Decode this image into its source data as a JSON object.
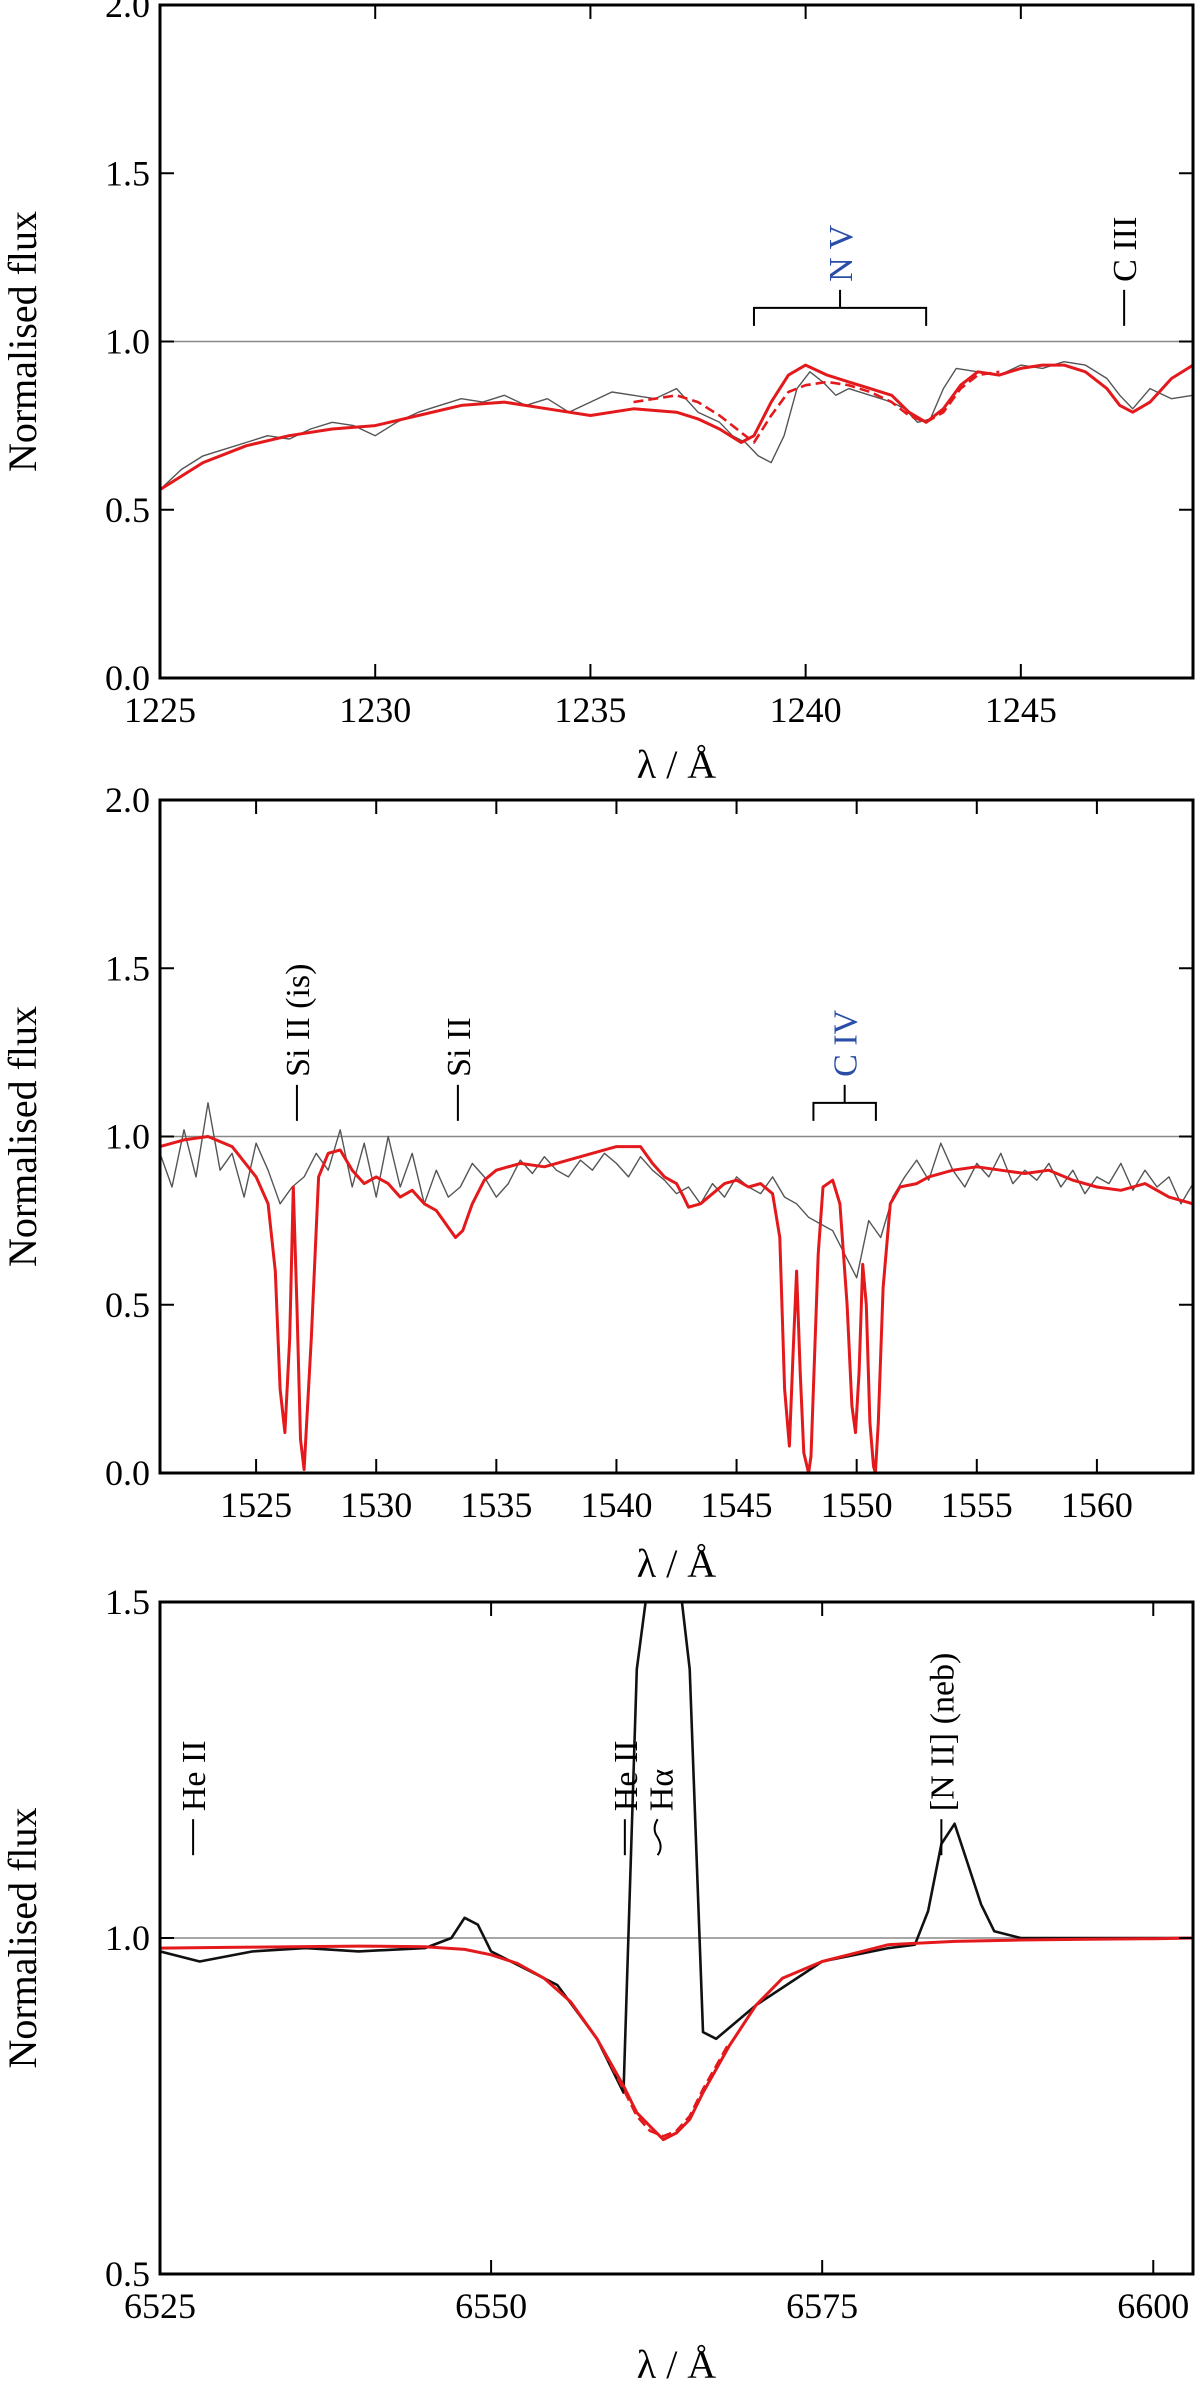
{
  "colors": {
    "observed": "#555555",
    "observed_halpha": "#111111",
    "model": "#e3191c",
    "line_id_blue": "#2a4ea8",
    "line_id_black": "#000000",
    "continuum": "#888888"
  },
  "chart_data": [
    {
      "type": "line",
      "xlabel": "λ / Å",
      "ylabel": "Normalised flux",
      "xlim": [
        1225,
        1249
      ],
      "ylim": [
        0,
        2
      ],
      "xticks": [
        1225,
        1230,
        1235,
        1240,
        1245
      ],
      "yticks": [
        0.0,
        0.5,
        1.0,
        1.5,
        2.0
      ],
      "ytick_labels": [
        "0.0",
        "0.5",
        "1.0",
        "1.5",
        "2.0"
      ],
      "continuum": 1.0,
      "annotations": [
        {
          "label": "N V",
          "color": "blue",
          "type": "doublet",
          "x": [
            1238.8,
            1242.8
          ],
          "y": 1.1
        },
        {
          "label": "C III",
          "color": "black",
          "type": "single",
          "x": 1247.4,
          "y": 1.1
        }
      ],
      "series": [
        {
          "style": "observed",
          "x": [
            1225,
            1225.5,
            1226,
            1226.5,
            1227,
            1227.5,
            1228,
            1228.5,
            1229,
            1229.5,
            1230,
            1230.5,
            1231,
            1231.5,
            1232,
            1232.5,
            1233,
            1233.5,
            1234,
            1234.5,
            1235,
            1235.5,
            1236,
            1236.5,
            1237,
            1237.5,
            1238,
            1238.3,
            1238.6,
            1238.9,
            1239.2,
            1239.5,
            1239.8,
            1240.1,
            1240.4,
            1240.7,
            1241,
            1241.5,
            1242,
            1242.3,
            1242.6,
            1242.9,
            1243.2,
            1243.5,
            1244,
            1244.5,
            1245,
            1245.5,
            1246,
            1246.5,
            1247,
            1247.3,
            1247.6,
            1248,
            1248.5,
            1249
          ],
          "y": [
            0.56,
            0.62,
            0.66,
            0.68,
            0.7,
            0.72,
            0.71,
            0.74,
            0.76,
            0.75,
            0.72,
            0.76,
            0.79,
            0.81,
            0.83,
            0.82,
            0.84,
            0.81,
            0.83,
            0.79,
            0.82,
            0.85,
            0.84,
            0.83,
            0.86,
            0.79,
            0.76,
            0.72,
            0.7,
            0.66,
            0.64,
            0.72,
            0.86,
            0.91,
            0.88,
            0.84,
            0.86,
            0.84,
            0.82,
            0.8,
            0.76,
            0.77,
            0.86,
            0.92,
            0.91,
            0.9,
            0.93,
            0.92,
            0.94,
            0.93,
            0.89,
            0.84,
            0.8,
            0.86,
            0.83,
            0.84
          ]
        },
        {
          "style": "model",
          "x": [
            1225,
            1226,
            1227,
            1228,
            1229,
            1230,
            1231,
            1232,
            1233,
            1234,
            1235,
            1236,
            1237,
            1237.5,
            1238,
            1238.5,
            1238.8,
            1239.2,
            1239.6,
            1240,
            1240.5,
            1241,
            1241.5,
            1242,
            1242.4,
            1242.8,
            1243.2,
            1243.6,
            1244,
            1244.5,
            1245,
            1245.5,
            1246,
            1246.5,
            1247,
            1247.3,
            1247.6,
            1248,
            1248.5,
            1249
          ],
          "y": [
            0.56,
            0.64,
            0.69,
            0.72,
            0.74,
            0.75,
            0.78,
            0.81,
            0.82,
            0.8,
            0.78,
            0.8,
            0.79,
            0.77,
            0.74,
            0.7,
            0.72,
            0.82,
            0.9,
            0.93,
            0.9,
            0.88,
            0.86,
            0.84,
            0.79,
            0.76,
            0.8,
            0.87,
            0.91,
            0.9,
            0.92,
            0.93,
            0.93,
            0.91,
            0.86,
            0.81,
            0.79,
            0.82,
            0.89,
            0.93
          ]
        },
        {
          "style": "model-dashed",
          "x": [
            1236,
            1236.5,
            1237,
            1237.5,
            1238,
            1238.4,
            1238.8,
            1239.2,
            1239.6,
            1240,
            1240.5,
            1241,
            1241.5,
            1242,
            1242.4,
            1242.8,
            1243.2,
            1243.6,
            1244,
            1244.5
          ],
          "y": [
            0.82,
            0.83,
            0.84,
            0.82,
            0.78,
            0.74,
            0.7,
            0.78,
            0.85,
            0.87,
            0.88,
            0.87,
            0.85,
            0.82,
            0.78,
            0.76,
            0.79,
            0.86,
            0.9,
            0.91
          ]
        }
      ]
    },
    {
      "type": "line",
      "xlabel": "λ / Å",
      "ylabel": "Normalised flux",
      "xlim": [
        1521,
        1564
      ],
      "ylim": [
        0,
        2
      ],
      "xticks": [
        1525,
        1530,
        1535,
        1540,
        1545,
        1550,
        1555,
        1560
      ],
      "yticks": [
        0.0,
        0.5,
        1.0,
        1.5,
        2.0
      ],
      "ytick_labels": [
        "0.0",
        "0.5",
        "1.0",
        "1.5",
        "2.0"
      ],
      "continuum": 1.0,
      "annotations": [
        {
          "label": "Si II (is)",
          "color": "black",
          "type": "single",
          "x": 1526.7,
          "y": 1.1
        },
        {
          "label": "Si II",
          "color": "black",
          "type": "single",
          "x": 1533.4,
          "y": 1.1
        },
        {
          "label": "C IV",
          "color": "blue",
          "type": "doublet",
          "x": [
            1548.2,
            1550.8
          ],
          "y": 1.1
        }
      ],
      "series": [
        {
          "style": "observed",
          "x": [
            1521,
            1521.5,
            1522,
            1522.5,
            1523,
            1523.5,
            1524,
            1524.5,
            1525,
            1525.5,
            1526,
            1526.5,
            1527,
            1527.5,
            1528,
            1528.5,
            1529,
            1529.5,
            1530,
            1530.5,
            1531,
            1531.5,
            1532,
            1532.5,
            1533,
            1533.5,
            1534,
            1534.5,
            1535,
            1535.5,
            1536,
            1536.5,
            1537,
            1537.5,
            1538,
            1538.5,
            1539,
            1539.5,
            1540,
            1540.5,
            1541,
            1541.5,
            1542,
            1542.5,
            1543,
            1543.5,
            1544,
            1544.5,
            1545,
            1545.5,
            1546,
            1546.5,
            1547,
            1547.5,
            1548,
            1548.5,
            1549,
            1549.5,
            1550,
            1550.5,
            1551,
            1551.5,
            1552,
            1552.5,
            1553,
            1553.5,
            1554,
            1554.5,
            1555,
            1555.5,
            1556,
            1556.5,
            1557,
            1557.5,
            1558,
            1558.5,
            1559,
            1559.5,
            1560,
            1560.5,
            1561,
            1561.5,
            1562,
            1562.5,
            1563,
            1563.5,
            1564
          ],
          "y": [
            0.95,
            0.85,
            1.02,
            0.88,
            1.1,
            0.9,
            0.95,
            0.82,
            0.98,
            0.9,
            0.8,
            0.85,
            0.88,
            0.95,
            0.9,
            1.02,
            0.85,
            0.98,
            0.82,
            1.0,
            0.85,
            0.95,
            0.8,
            0.9,
            0.82,
            0.85,
            0.92,
            0.88,
            0.82,
            0.86,
            0.93,
            0.89,
            0.94,
            0.9,
            0.88,
            0.93,
            0.9,
            0.95,
            0.92,
            0.88,
            0.94,
            0.9,
            0.87,
            0.83,
            0.85,
            0.8,
            0.86,
            0.82,
            0.88,
            0.85,
            0.83,
            0.88,
            0.82,
            0.8,
            0.76,
            0.74,
            0.72,
            0.65,
            0.58,
            0.75,
            0.7,
            0.82,
            0.88,
            0.93,
            0.87,
            0.98,
            0.9,
            0.85,
            0.92,
            0.88,
            0.95,
            0.86,
            0.9,
            0.87,
            0.92,
            0.85,
            0.9,
            0.83,
            0.88,
            0.86,
            0.92,
            0.84,
            0.9,
            0.85,
            0.88,
            0.8,
            0.86
          ]
        },
        {
          "style": "model",
          "x": [
            1521,
            1522,
            1523,
            1524,
            1525,
            1525.5,
            1525.8,
            1526,
            1526.2,
            1526.4,
            1526.55,
            1526.7,
            1526.85,
            1527,
            1527.3,
            1527.6,
            1528,
            1528.5,
            1529,
            1529.5,
            1530,
            1530.5,
            1531,
            1531.5,
            1532,
            1532.5,
            1533,
            1533.3,
            1533.6,
            1534,
            1534.5,
            1535,
            1536,
            1537,
            1538,
            1539,
            1540,
            1541,
            1541.5,
            1542,
            1542.5,
            1542.8,
            1543,
            1543.5,
            1544,
            1544.5,
            1545,
            1545.5,
            1546,
            1546.5,
            1546.8,
            1547,
            1547.2,
            1547.35,
            1547.5,
            1547.65,
            1547.8,
            1548,
            1548.1,
            1548.25,
            1548.4,
            1548.6,
            1549,
            1549.3,
            1549.6,
            1549.8,
            1549.95,
            1550.1,
            1550.25,
            1550.4,
            1550.55,
            1550.7,
            1550.78,
            1550.9,
            1551.1,
            1551.4,
            1551.8,
            1552.5,
            1553,
            1554,
            1555,
            1556,
            1557,
            1558,
            1559,
            1560,
            1561,
            1562,
            1563,
            1564
          ],
          "y": [
            0.97,
            0.99,
            1.0,
            0.97,
            0.88,
            0.8,
            0.6,
            0.25,
            0.12,
            0.4,
            0.85,
            0.5,
            0.1,
            0.01,
            0.4,
            0.88,
            0.95,
            0.96,
            0.9,
            0.86,
            0.88,
            0.86,
            0.82,
            0.84,
            0.8,
            0.78,
            0.73,
            0.7,
            0.72,
            0.8,
            0.87,
            0.9,
            0.92,
            0.91,
            0.93,
            0.95,
            0.97,
            0.97,
            0.92,
            0.88,
            0.86,
            0.82,
            0.79,
            0.8,
            0.83,
            0.86,
            0.87,
            0.85,
            0.86,
            0.83,
            0.7,
            0.25,
            0.08,
            0.35,
            0.6,
            0.3,
            0.06,
            0.0,
            0.05,
            0.35,
            0.65,
            0.85,
            0.87,
            0.8,
            0.5,
            0.2,
            0.12,
            0.3,
            0.62,
            0.5,
            0.15,
            0.02,
            0.0,
            0.15,
            0.55,
            0.8,
            0.85,
            0.86,
            0.88,
            0.9,
            0.91,
            0.9,
            0.89,
            0.9,
            0.87,
            0.85,
            0.84,
            0.86,
            0.82,
            0.8
          ]
        }
      ]
    },
    {
      "type": "line",
      "xlabel": "λ / Å",
      "ylabel": "Normalised flux",
      "xlim": [
        6525,
        6603
      ],
      "ylim": [
        0.5,
        1.5
      ],
      "xticks": [
        6525,
        6550,
        6575,
        6600
      ],
      "yticks": [
        0.5,
        1.0,
        1.5
      ],
      "ytick_labels": [
        "0.5",
        "1.0",
        "1.5"
      ],
      "continuum": 1.0,
      "annotations": [
        {
          "label": "He II",
          "color": "black",
          "type": "single",
          "x": 6527.5,
          "y": 1.15
        },
        {
          "label": "He II",
          "color": "black",
          "type": "single",
          "x": 6560.1,
          "y": 1.15
        },
        {
          "label": "Hα",
          "color": "black",
          "type": "single-wavy",
          "x": 6562.8,
          "y": 1.15
        },
        {
          "label": "[N II] (neb)",
          "color": "black",
          "type": "single",
          "x": 6584.0,
          "y": 1.15
        }
      ],
      "series": [
        {
          "style": "observed",
          "x": [
            6525,
            6528,
            6532,
            6536,
            6540,
            6545,
            6547,
            6548,
            6549,
            6550,
            6552,
            6555,
            6558,
            6560,
            6561,
            6562,
            6563,
            6564,
            6565,
            6566,
            6567,
            6570,
            6575,
            6580,
            6582,
            6583,
            6584,
            6585,
            6586,
            6587,
            6588,
            6590,
            6595,
            6600,
            6603
          ],
          "y": [
            0.98,
            0.965,
            0.98,
            0.985,
            0.98,
            0.985,
            1.0,
            1.03,
            1.02,
            0.98,
            0.96,
            0.93,
            0.85,
            0.77,
            1.4,
            1.55,
            1.58,
            1.57,
            1.4,
            0.86,
            0.85,
            0.9,
            0.965,
            0.985,
            0.99,
            1.04,
            1.14,
            1.17,
            1.11,
            1.05,
            1.01,
            1.0,
            1.0,
            1.0,
            1.0
          ]
        },
        {
          "style": "model",
          "x": [
            6525,
            6530,
            6535,
            6540,
            6545,
            6548,
            6550,
            6552,
            6554,
            6556,
            6558,
            6560,
            6561,
            6562,
            6563,
            6564,
            6565,
            6566,
            6568,
            6570,
            6572,
            6575,
            6578,
            6580,
            6585,
            6590,
            6595,
            6600,
            6603
          ],
          "y": [
            0.985,
            0.986,
            0.987,
            0.988,
            0.987,
            0.983,
            0.975,
            0.962,
            0.94,
            0.905,
            0.85,
            0.78,
            0.74,
            0.72,
            0.7,
            0.71,
            0.73,
            0.77,
            0.84,
            0.9,
            0.94,
            0.965,
            0.98,
            0.99,
            0.995,
            0.997,
            0.998,
            0.999,
            1.0
          ]
        },
        {
          "style": "model-dashed",
          "x": [
            6556,
            6558,
            6560,
            6561,
            6562,
            6563,
            6564,
            6565,
            6566,
            6568
          ],
          "y": [
            0.905,
            0.85,
            0.775,
            0.735,
            0.713,
            0.705,
            0.713,
            0.735,
            0.775,
            0.845
          ]
        }
      ]
    }
  ]
}
